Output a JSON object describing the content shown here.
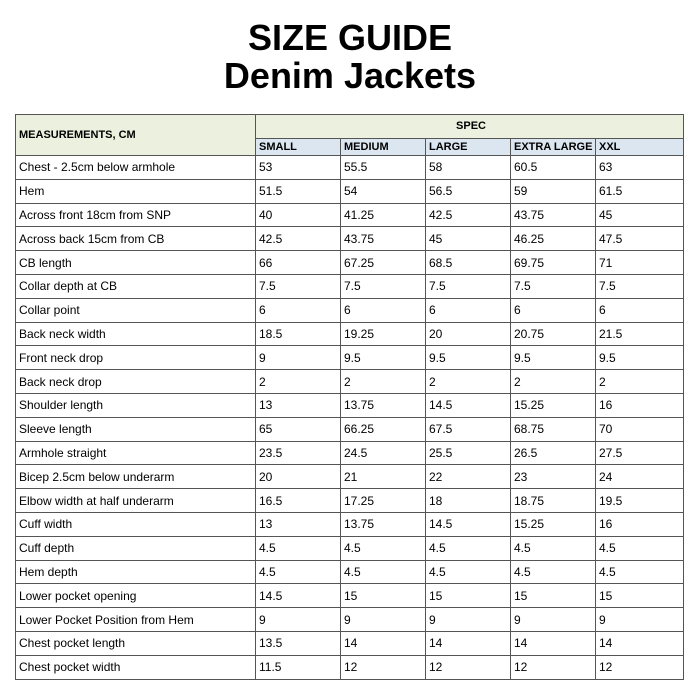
{
  "header": {
    "title": "SIZE GUIDE",
    "subtitle": "Denim Jackets"
  },
  "table": {
    "label_header": "MEASUREMENTS, CM",
    "group_header": "SPEC",
    "columns": [
      "SMALL",
      "MEDIUM",
      "LARGE",
      "EXTRA LARGE",
      "XXL"
    ],
    "rows": [
      [
        "Chest - 2.5cm below armhole",
        53,
        55.5,
        58,
        60.5,
        63
      ],
      [
        "Hem",
        51.5,
        54,
        56.5,
        59,
        61.5
      ],
      [
        "Across front 18cm from SNP",
        40,
        41.25,
        42.5,
        43.75,
        45
      ],
      [
        "Across back 15cm from CB",
        42.5,
        43.75,
        45,
        46.25,
        47.5
      ],
      [
        "CB length",
        66,
        67.25,
        68.5,
        69.75,
        71
      ],
      [
        "Collar depth at CB",
        7.5,
        7.5,
        7.5,
        7.5,
        7.5
      ],
      [
        "Collar point",
        6,
        6,
        6,
        6,
        6
      ],
      [
        "Back neck width",
        18.5,
        19.25,
        20,
        20.75,
        21.5
      ],
      [
        "Front neck drop",
        9,
        9.5,
        9.5,
        9.5,
        9.5
      ],
      [
        "Back neck drop",
        2,
        2,
        2,
        2,
        2
      ],
      [
        "Shoulder length",
        13,
        13.75,
        14.5,
        15.25,
        16
      ],
      [
        "Sleeve length",
        65,
        66.25,
        67.5,
        68.75,
        70
      ],
      [
        "Armhole straight",
        23.5,
        24.5,
        25.5,
        26.5,
        27.5
      ],
      [
        "Bicep 2.5cm below underarm",
        20,
        21,
        22,
        23,
        24
      ],
      [
        "Elbow width at half underarm",
        16.5,
        17.25,
        18,
        18.75,
        19.5
      ],
      [
        "Cuff width",
        13,
        13.75,
        14.5,
        15.25,
        16
      ],
      [
        "Cuff depth",
        4.5,
        4.5,
        4.5,
        4.5,
        4.5
      ],
      [
        "Hem depth",
        4.5,
        4.5,
        4.5,
        4.5,
        4.5
      ],
      [
        "Lower pocket opening",
        14.5,
        15,
        15,
        15,
        15
      ],
      [
        "Lower Pocket Position from Hem",
        9,
        9,
        9,
        9,
        9
      ],
      [
        "Chest pocket length",
        13.5,
        14,
        14,
        14,
        14
      ],
      [
        "Chest pocket width",
        11.5,
        12,
        12,
        12,
        12
      ]
    ]
  }
}
